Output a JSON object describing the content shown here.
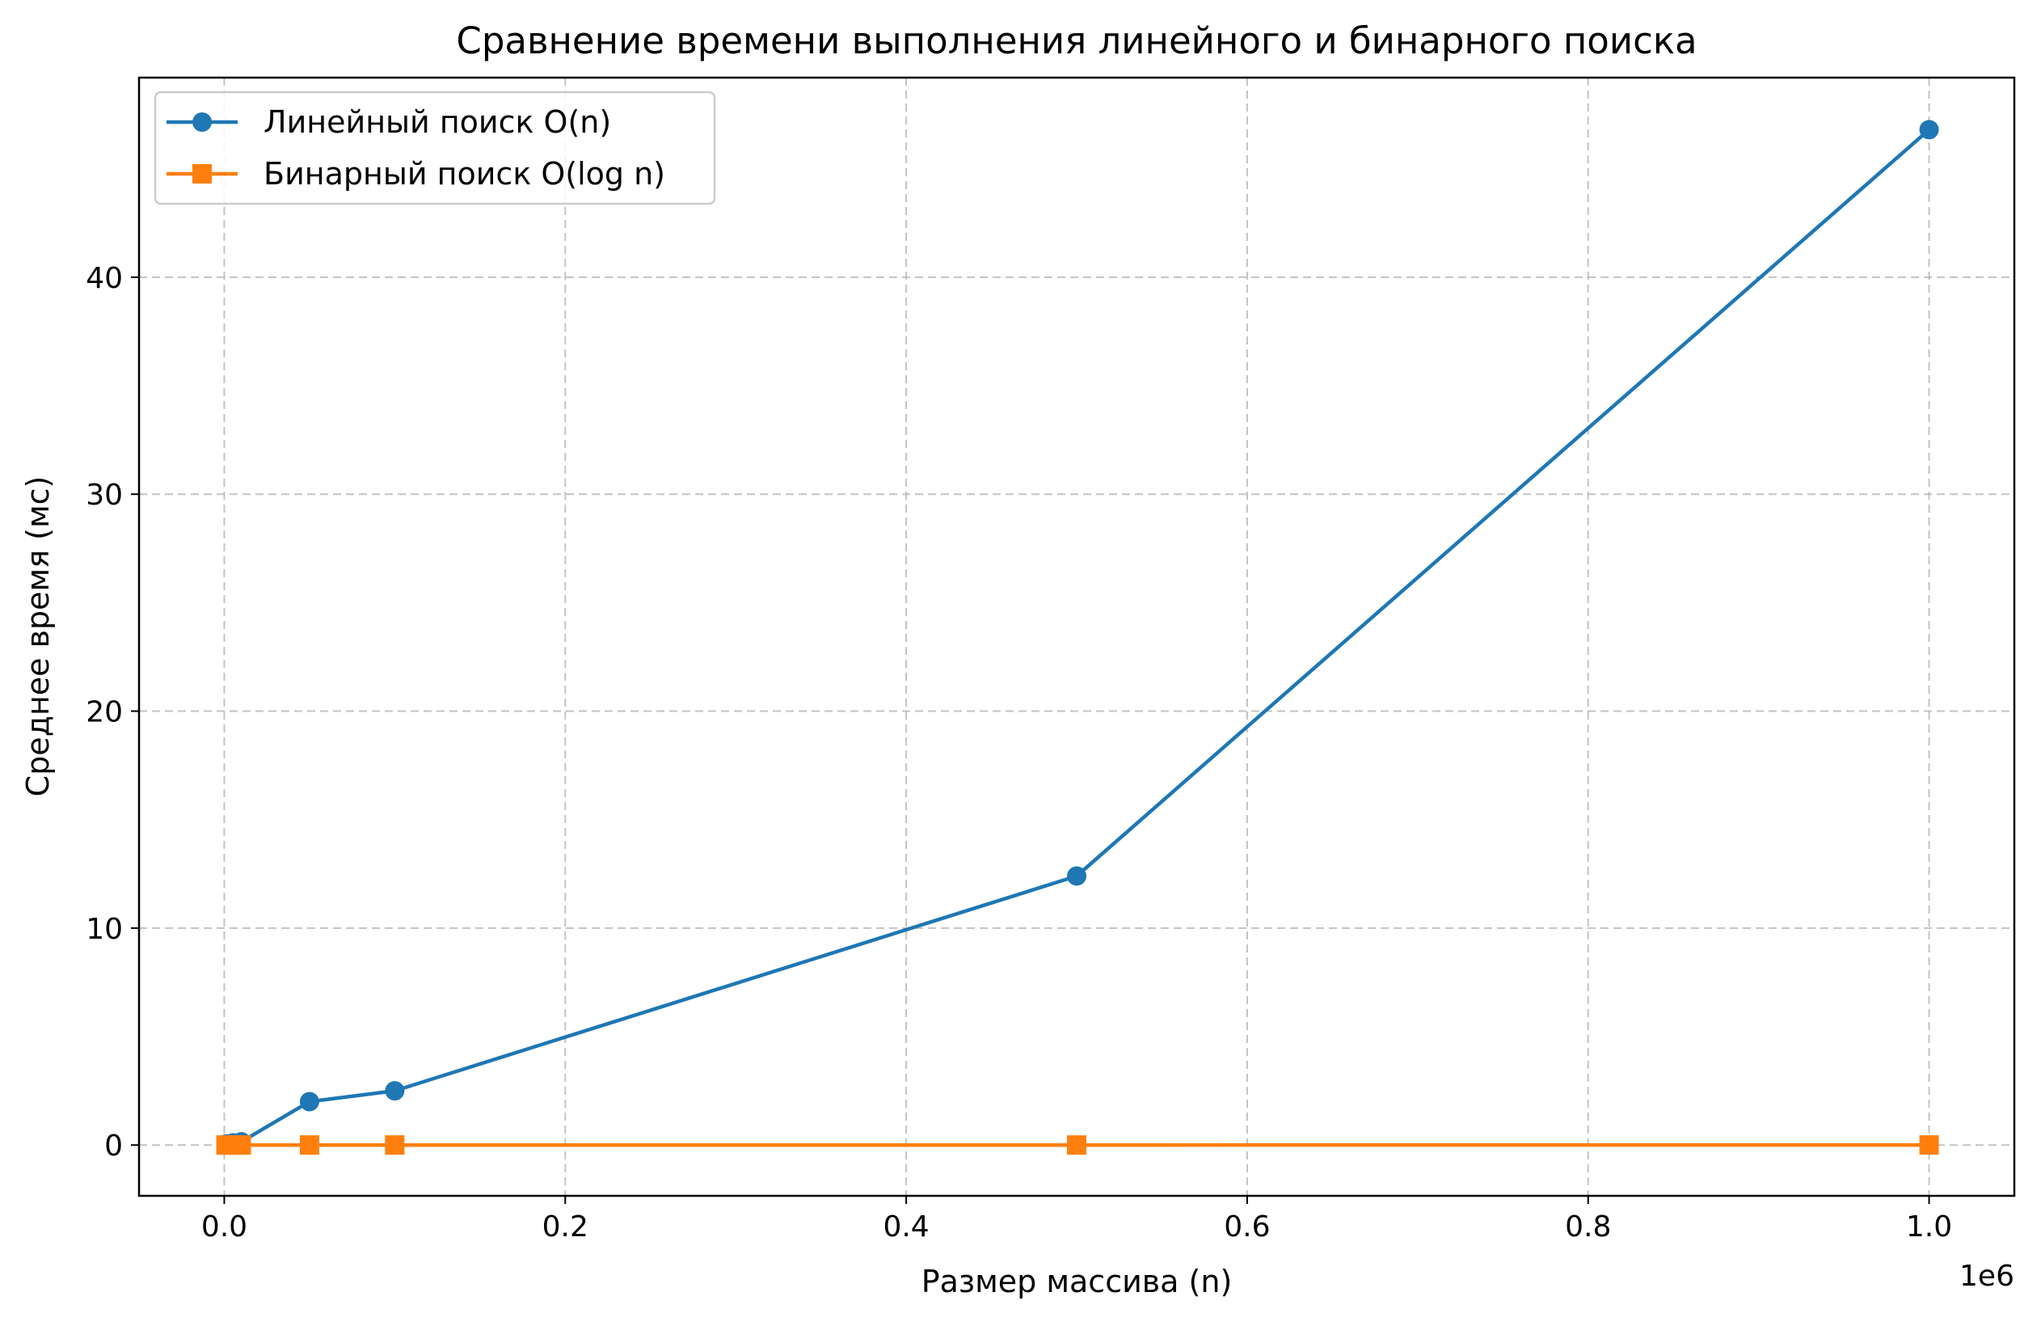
{
  "chart_data": {
    "type": "line",
    "title": "Сравнение времени выполнения линейного и бинарного поиска",
    "xlabel": "Размер массива (n)",
    "ylabel": "Среднее время (мс)",
    "x_offset_label": "1e6",
    "xlim": [
      -50000,
      1050000
    ],
    "ylim": [
      -2.34,
      49.2
    ],
    "x_ticks": [
      {
        "value": 0,
        "label": "0.0"
      },
      {
        "value": 200000,
        "label": "0.2"
      },
      {
        "value": 400000,
        "label": "0.4"
      },
      {
        "value": 600000,
        "label": "0.6"
      },
      {
        "value": 800000,
        "label": "0.8"
      },
      {
        "value": 1000000,
        "label": "1.0"
      }
    ],
    "y_ticks": [
      {
        "value": 0,
        "label": "0"
      },
      {
        "value": 10,
        "label": "10"
      },
      {
        "value": 20,
        "label": "20"
      },
      {
        "value": 30,
        "label": "30"
      },
      {
        "value": 40,
        "label": "40"
      }
    ],
    "grid": true,
    "legend_position": "top-left",
    "series": [
      {
        "name": "Линейный поиск O(n)",
        "color": "#1f77b4",
        "marker": "circle",
        "x": [
          1000,
          5000,
          10000,
          50000,
          100000,
          500000,
          1000000
        ],
        "y": [
          0.05,
          0.1,
          0.15,
          2.0,
          2.5,
          12.4,
          46.8
        ]
      },
      {
        "name": "Бинарный поиск O(log n)",
        "color": "#ff7f0e",
        "marker": "square",
        "x": [
          1000,
          5000,
          10000,
          50000,
          100000,
          500000,
          1000000
        ],
        "y": [
          0.001,
          0.001,
          0.001,
          0.002,
          0.002,
          0.002,
          0.003
        ]
      }
    ]
  }
}
